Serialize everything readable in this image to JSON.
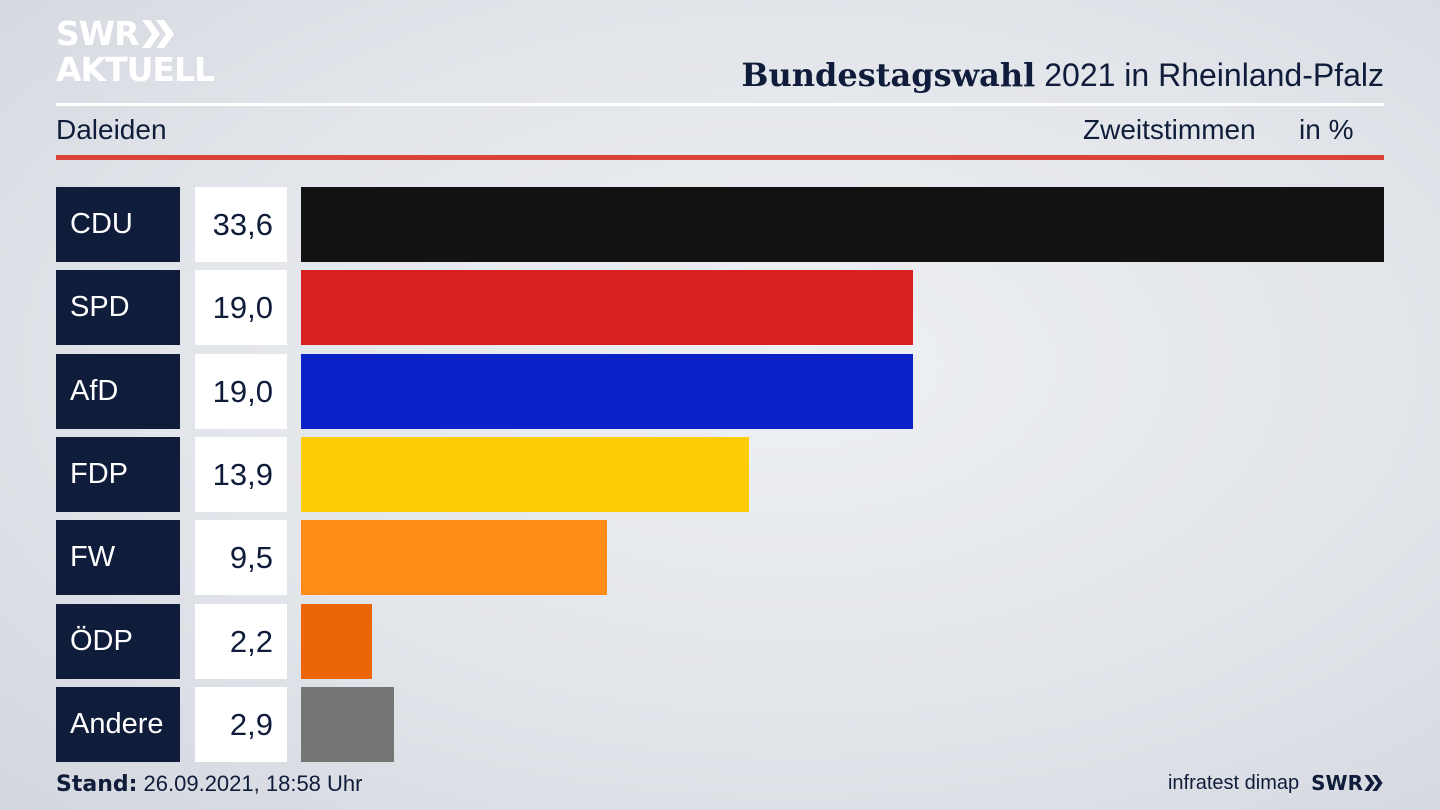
{
  "logo": {
    "line1": "SWR",
    "line2": "AKTUELL"
  },
  "header": {
    "title_bold": "Bundestagswahl",
    "title_rest": " 2021 in Rheinland-Pfalz",
    "location": "Daleiden",
    "measure": "Zweitstimmen",
    "unit": "in %"
  },
  "chart_data": {
    "type": "bar",
    "orientation": "horizontal",
    "title": "Bundestagswahl 2021 in Rheinland-Pfalz",
    "subtitle": "Daleiden – Zweitstimmen in %",
    "categories": [
      "CDU",
      "SPD",
      "AfD",
      "FDP",
      "FW",
      "ÖDP",
      "Andere"
    ],
    "values": [
      33.6,
      19.0,
      19.0,
      13.9,
      9.5,
      2.2,
      2.9
    ],
    "labels": [
      "33,6",
      "19,0",
      "19,0",
      "13,9",
      "9,5",
      "2,2",
      "2,9"
    ],
    "colors": [
      "#121212",
      "#d72020",
      "#0a22c8",
      "#fecd08",
      "#fe8c17",
      "#ed6509",
      "#757575"
    ],
    "xlim": [
      0,
      33.6
    ]
  },
  "footer": {
    "stand_label": "Stand:",
    "stand_value": " 26.09.2021, 18:58 Uhr",
    "source": "infratest dimap",
    "brand": "SWR"
  },
  "colors": {
    "navy": "#0f1c3a",
    "accent_red": "#d9443a"
  }
}
